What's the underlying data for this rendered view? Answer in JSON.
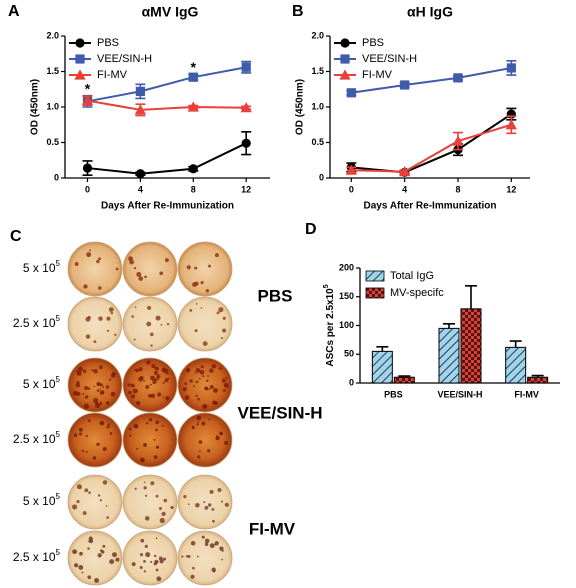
{
  "chart_data": [
    {
      "type": "line",
      "panel": "A",
      "title": "αMV IgG",
      "xlabel": "Days After Re-Immunization",
      "ylabel": "OD (450nm)",
      "x": [
        0,
        4,
        8,
        12
      ],
      "xlim": [
        -1.7,
        13.8
      ],
      "xticks": [
        0,
        4,
        8,
        12
      ],
      "ylim": [
        0,
        2
      ],
      "yticks": [
        0,
        0.5,
        {
          "value": 1,
          "label": "1.0"
        },
        1.5,
        {
          "value": 2,
          "label": "2.0"
        }
      ],
      "legend": "upper left",
      "series": [
        {
          "name": "PBS",
          "color": "#000000",
          "marker": "circle",
          "values": [
            0.14,
            0.06,
            0.13,
            0.49
          ],
          "errors": [
            0.1,
            0.02,
            0.03,
            0.16
          ]
        },
        {
          "name": "VEE/SIN-H",
          "color": "#3f5ba9",
          "marker": "square",
          "values": [
            1.08,
            1.22,
            1.42,
            1.56
          ],
          "errors": [
            0.08,
            0.1,
            0.04,
            0.08
          ]
        },
        {
          "name": "FI-MV",
          "color": "#e8403a",
          "marker": "triangle",
          "values": [
            1.09,
            0.96,
            1.0,
            0.99
          ],
          "errors": [
            0.06,
            0.08,
            0.02,
            0.02
          ]
        }
      ],
      "annotations": [
        {
          "text": "*",
          "x": 0
        },
        {
          "text": "*",
          "x": 8
        }
      ]
    },
    {
      "type": "line",
      "panel": "B",
      "title": "αH IgG",
      "xlabel": "Days After Re-Immunization",
      "ylabel": "OD (450nm)",
      "x": [
        0,
        4,
        8,
        12
      ],
      "xlim": [
        -1.6,
        13.4
      ],
      "xticks": [
        0,
        4,
        8,
        12
      ],
      "ylim": [
        0,
        2
      ],
      "yticks": [
        0,
        0.5,
        {
          "value": 1,
          "label": "1.0"
        },
        1.5,
        {
          "value": 2,
          "label": "2.0"
        }
      ],
      "legend": "upper left",
      "series": [
        {
          "name": "PBS",
          "color": "#000000",
          "marker": "circle",
          "values": [
            0.15,
            0.08,
            0.4,
            0.9
          ],
          "errors": [
            0.06,
            0.03,
            0.08,
            0.08
          ]
        },
        {
          "name": "VEE/SIN-H",
          "color": "#3f5ba9",
          "marker": "square",
          "values": [
            1.2,
            1.31,
            1.41,
            1.55
          ],
          "errors": [
            0.03,
            0.03,
            0.03,
            0.1
          ]
        },
        {
          "name": "FI-MV",
          "color": "#e8403a",
          "marker": "triangle",
          "values": [
            0.11,
            0.09,
            0.52,
            0.75
          ],
          "errors": [
            0.04,
            0.02,
            0.12,
            0.12
          ]
        }
      ]
    },
    {
      "type": "bar",
      "panel": "D",
      "ylabel": "ASCs per 2.5x10",
      "ylabel_exponent": "5",
      "categories": [
        "PBS",
        "VEE/SIN-H",
        "FI-MV"
      ],
      "ylim": [
        0,
        200
      ],
      "yticks": [
        0,
        50,
        100,
        150,
        200
      ],
      "legend": "upper left",
      "series": [
        {
          "name": "Total IgG",
          "color": "#9fd4ea",
          "pattern": "hatch",
          "values": [
            55,
            95,
            62
          ],
          "errors": [
            8,
            8,
            11
          ]
        },
        {
          "name": "MV-specifc",
          "color": "#d9423a",
          "pattern": "checker",
          "values": [
            10,
            129,
            10
          ],
          "errors": [
            2,
            40,
            3
          ]
        }
      ]
    }
  ],
  "image_panel": {
    "label": "C",
    "rows": [
      {
        "label": "5 x 10",
        "exponent": "5"
      },
      {
        "label": "2.5 x 10",
        "exponent": "5"
      },
      {
        "label": "5 x 10",
        "exponent": "5"
      },
      {
        "label": "2.5 x 10",
        "exponent": "5"
      },
      {
        "label": "5 x 10",
        "exponent": "5"
      },
      {
        "label": "2.5 x 10",
        "exponent": "5"
      }
    ],
    "groups": [
      "PBS",
      "VEE/SIN-H",
      "FI-MV"
    ]
  }
}
